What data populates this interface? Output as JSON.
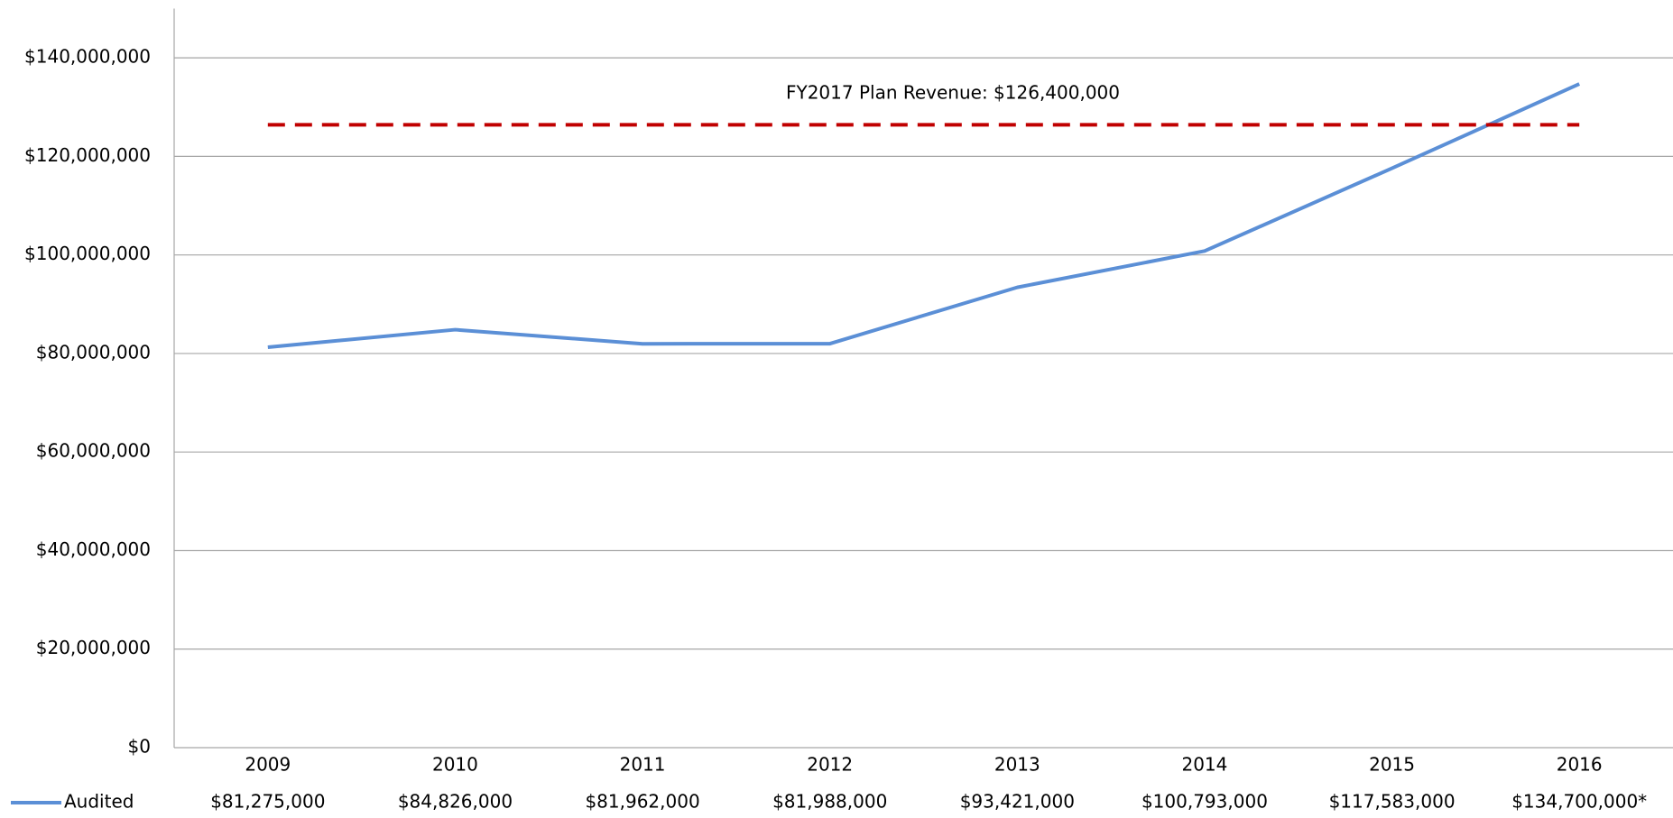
{
  "chart_data": {
    "type": "line",
    "categories": [
      "2009",
      "2010",
      "2011",
      "2012",
      "2013",
      "2014",
      "2015",
      "2016"
    ],
    "series": [
      {
        "name": "Audited",
        "color": "#5b8fd6",
        "values": [
          81275000,
          84826000,
          81962000,
          81988000,
          93421000,
          100793000,
          117583000,
          134700000
        ],
        "value_labels": [
          "$81,275,000",
          "$84,826,000",
          "$81,962,000",
          "$81,988,000",
          "$93,421,000",
          "$100,793,000",
          "$117,583,000",
          "$134,700,000*"
        ]
      }
    ],
    "reference_line": {
      "value": 126400000,
      "label": "FY2017 Plan Revenue: $126,400,000",
      "color": "#c00000"
    },
    "ylim": [
      0,
      150000000
    ],
    "yticks": [
      {
        "value": 0,
        "label": "$0"
      },
      {
        "value": 20000000,
        "label": "$20,000,000"
      },
      {
        "value": 40000000,
        "label": "$40,000,000"
      },
      {
        "value": 60000000,
        "label": "$60,000,000"
      },
      {
        "value": 80000000,
        "label": "$80,000,000"
      },
      {
        "value": 100000000,
        "label": "$100,000,000"
      },
      {
        "value": 120000000,
        "label": "$120,000,000"
      },
      {
        "value": 140000000,
        "label": "$140,000,000"
      }
    ],
    "grid": true
  }
}
